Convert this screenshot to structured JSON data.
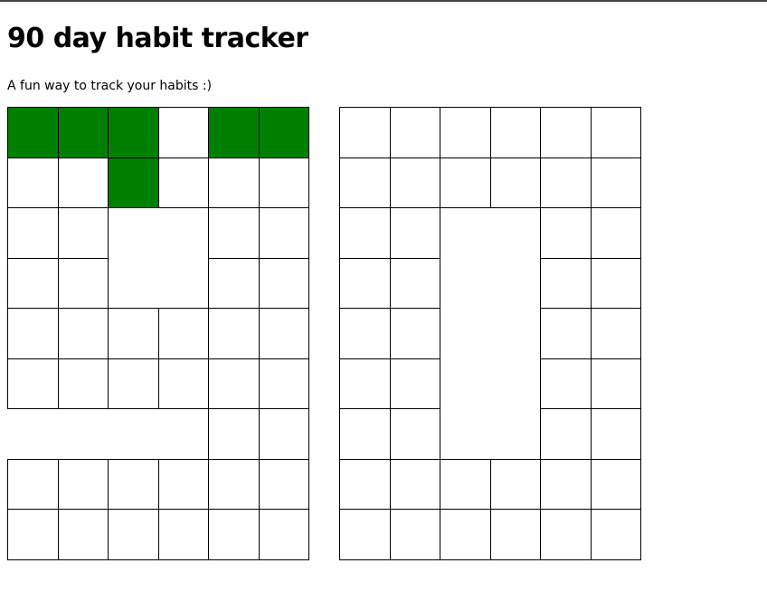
{
  "header": {
    "title": "90 day habit tracker",
    "subtitle": "A fun way to track your habits :)"
  },
  "colors": {
    "completed": "#008000",
    "empty": "#ffffff",
    "cell_border": "#000000"
  },
  "trackers": [
    {
      "name": "tracker-left",
      "rows": [
        [
          1,
          1,
          1,
          0,
          1,
          1
        ],
        [
          0,
          0,
          1,
          0,
          0,
          0
        ],
        [
          0,
          0,
          null,
          null,
          0,
          0
        ],
        [
          0,
          0,
          null,
          null,
          0,
          0
        ],
        [
          0,
          0,
          0,
          0,
          0,
          0
        ],
        [
          0,
          0,
          0,
          0,
          0,
          0
        ],
        [
          null,
          null,
          null,
          null,
          0,
          0
        ],
        [
          0,
          0,
          0,
          0,
          0,
          0
        ],
        [
          0,
          0,
          0,
          0,
          0,
          0
        ]
      ]
    },
    {
      "name": "tracker-right",
      "rows": [
        [
          0,
          0,
          0,
          0,
          0,
          0
        ],
        [
          0,
          0,
          0,
          0,
          0,
          0
        ],
        [
          0,
          0,
          null,
          null,
          0,
          0
        ],
        [
          0,
          0,
          null,
          null,
          0,
          0
        ],
        [
          0,
          0,
          null,
          null,
          0,
          0
        ],
        [
          0,
          0,
          null,
          null,
          0,
          0
        ],
        [
          0,
          0,
          null,
          null,
          0,
          0
        ],
        [
          0,
          0,
          0,
          0,
          0,
          0
        ],
        [
          0,
          0,
          0,
          0,
          0,
          0
        ]
      ]
    }
  ]
}
